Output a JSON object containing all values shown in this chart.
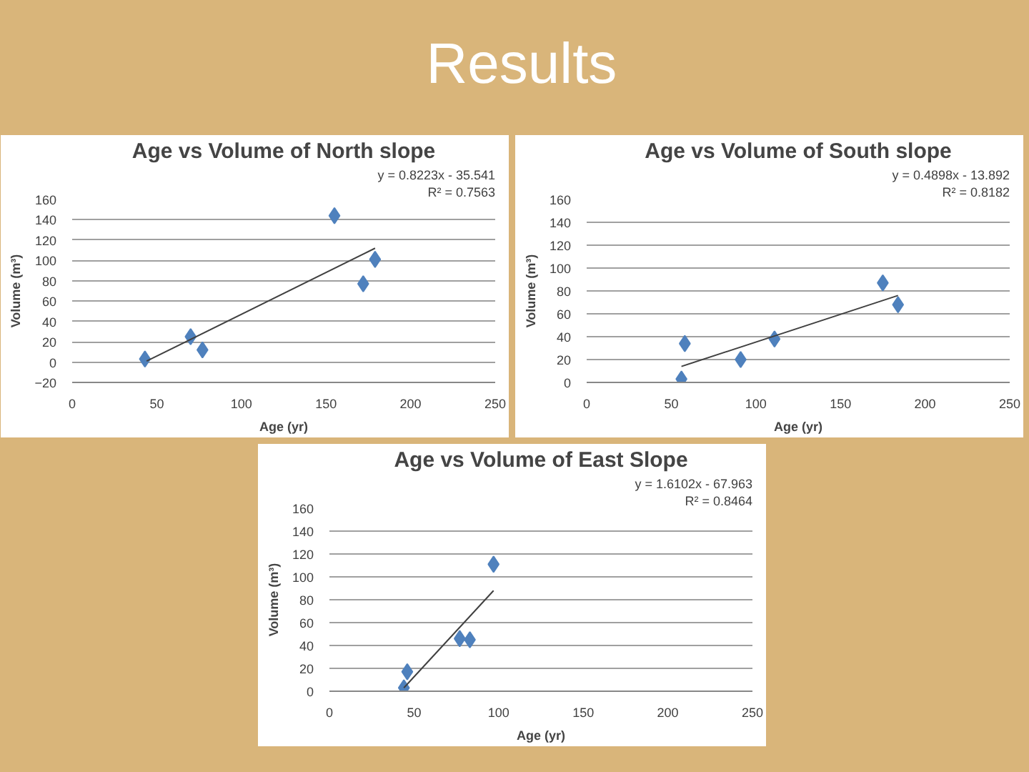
{
  "chart_data": [
    {
      "type": "other",
      "title": "Results"
    },
    {
      "type": "scatter",
      "title": "Age vs Volume of North slope",
      "xlabel": "Age (yr)",
      "ylabel": "Volume (m³)",
      "annotations": [
        "y = 0.8223x - 35.541",
        "R² = 0.7563"
      ],
      "xlim": [
        0,
        250
      ],
      "xticks": [
        0,
        50,
        100,
        150,
        200,
        250
      ],
      "ylim": [
        -20,
        160
      ],
      "yticks": [
        -20,
        0,
        20,
        40,
        60,
        80,
        100,
        120,
        140,
        160
      ],
      "grid": "y",
      "marker": "diamond",
      "series": [
        {
          "type": "scatter",
          "color": "#4f81bd",
          "x": [
            43,
            70,
            77,
            155,
            172,
            179
          ],
          "values": [
            3,
            25,
            12,
            144,
            77,
            101
          ]
        },
        {
          "type": "line",
          "color": "#404040",
          "marker": "none",
          "x": [
            44,
            179
          ],
          "values": [
            1,
            112
          ]
        }
      ]
    },
    {
      "type": "scatter",
      "title": "Age vs Volume of South slope",
      "xlabel": "Age (yr)",
      "ylabel": "Volume (m³)",
      "annotations": [
        "y = 0.4898x - 13.892",
        "R² = 0.8182"
      ],
      "xlim": [
        0,
        250
      ],
      "xticks": [
        0,
        50,
        100,
        150,
        200,
        250
      ],
      "ylim": [
        0,
        160
      ],
      "yticks": [
        0,
        20,
        40,
        60,
        80,
        100,
        120,
        140,
        160
      ],
      "grid": "y",
      "marker": "diamond",
      "series": [
        {
          "type": "scatter",
          "color": "#4f81bd",
          "x": [
            56,
            58,
            91,
            111,
            175,
            184
          ],
          "values": [
            3,
            34,
            20,
            38,
            87,
            68
          ]
        },
        {
          "type": "line",
          "color": "#404040",
          "marker": "none",
          "x": [
            56,
            184
          ],
          "values": [
            14,
            76
          ]
        }
      ]
    },
    {
      "type": "scatter",
      "title": "Age vs Volume of East Slope",
      "xlabel": "Age (yr)",
      "ylabel": "Volume (m³)",
      "annotations": [
        "y = 1.6102x - 67.963",
        "R² = 0.8464"
      ],
      "xlim": [
        0,
        250
      ],
      "xticks": [
        0,
        50,
        100,
        150,
        200,
        250
      ],
      "ylim": [
        0,
        160
      ],
      "yticks": [
        0,
        20,
        40,
        60,
        80,
        100,
        120,
        140,
        160
      ],
      "grid": "y",
      "marker": "diamond",
      "series": [
        {
          "type": "scatter",
          "color": "#4f81bd",
          "x": [
            44,
            46,
            77,
            83,
            97
          ],
          "values": [
            3,
            17,
            46,
            45,
            111
          ]
        },
        {
          "type": "line",
          "color": "#404040",
          "marker": "none",
          "x": [
            44,
            97
          ],
          "values": [
            3,
            88
          ]
        }
      ]
    }
  ]
}
